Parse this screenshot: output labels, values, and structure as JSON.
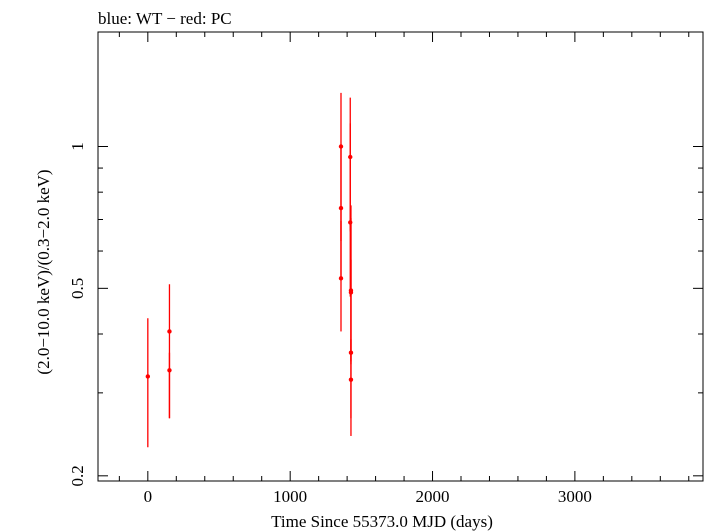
{
  "chart_data": {
    "type": "scatter",
    "title": "blue: WT − red: PC",
    "xlabel": "Time Since 55373.0 MJD (days)",
    "ylabel": "(2.0−10.0 keV)/(0.3−2.0 keV)",
    "xlim": [
      -350,
      3900
    ],
    "ylim": [
      0.195,
      1.75
    ],
    "yscale": "log",
    "xticks": [
      0,
      1000,
      2000,
      3000
    ],
    "xtick_labels": [
      "0",
      "1000",
      "2000",
      "3000"
    ],
    "yticks": [
      0.2,
      0.5,
      1
    ],
    "ytick_labels": [
      "0.2",
      "0.5",
      "1"
    ],
    "grid": false,
    "series": [
      {
        "color": "#ff0000",
        "x": [
          0,
          152,
          152,
          1357,
          1357,
          1357,
          1422,
          1422,
          1427,
          1427,
          1427,
          1427
        ],
        "y": [
          0.325,
          0.405,
          0.335,
          1.0,
          0.74,
          0.525,
          0.95,
          0.69,
          0.495,
          0.49,
          0.365,
          0.32
        ],
        "yerr_low": [
          0.095,
          0.14,
          0.07,
          0.37,
          0.21,
          0.12,
          0.29,
          0.21,
          0.15,
          0.14,
          0.1,
          0.077
        ],
        "yerr_high": [
          0.107,
          0.105,
          0.03,
          0.3,
          0.27,
          0.17,
          0.32,
          0.43,
          0.21,
          0.26,
          0.21,
          0.07
        ]
      }
    ]
  }
}
